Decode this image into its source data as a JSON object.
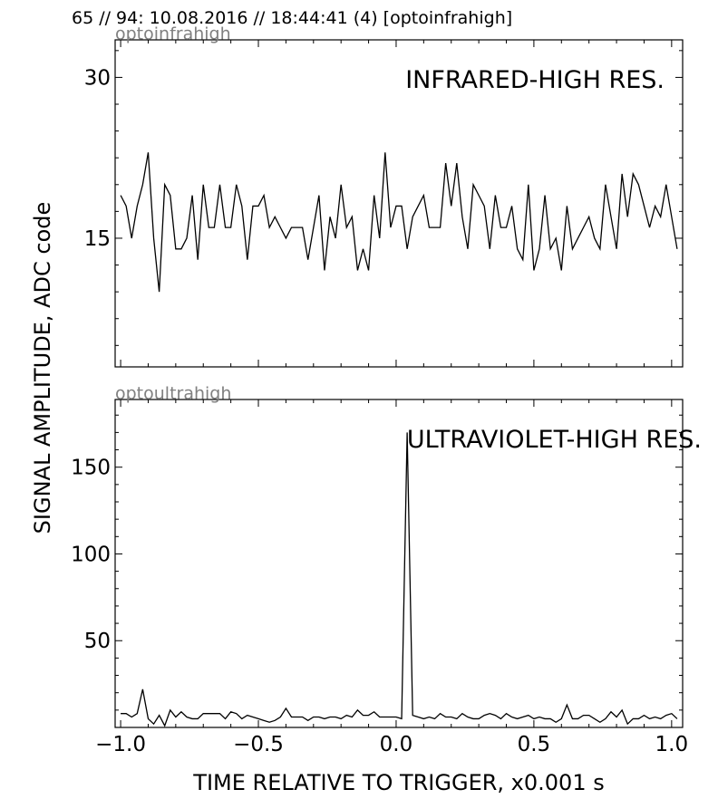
{
  "header": "65 // 94:   10.08.2016 // 18:44:41 (4)  [optoinfrahigh]",
  "ylabel": "SIGNAL AMPLITUDE,  ADC code",
  "xlabel": "TIME RELATIVE TO TRIGGER,   x0.001 s",
  "chart_data": [
    {
      "type": "line",
      "channel": "optoinfrahigh",
      "title": "INFRARED-HIGH RES.",
      "xlim": [
        -1.02,
        1.04
      ],
      "ylim": [
        3,
        33.5
      ],
      "xticks": [
        -1.0,
        -0.5,
        0.0,
        0.5,
        1.0
      ],
      "xtick_labels": [
        "−1.0",
        "−0.5",
        "0.0",
        "0.5",
        "1.0"
      ],
      "yticks": [
        15,
        30
      ],
      "ytick_labels": [
        "15",
        "30"
      ],
      "x_start": -1.0,
      "x_step": 0.02,
      "values": [
        19,
        18,
        15,
        18,
        20,
        23,
        15,
        10,
        20,
        19,
        14,
        14,
        15,
        19,
        13,
        20,
        16,
        16,
        20,
        16,
        16,
        20,
        18,
        13,
        18,
        18,
        19,
        16,
        17,
        16,
        15,
        16,
        16,
        16,
        13,
        16,
        19,
        12,
        17,
        15,
        20,
        16,
        17,
        12,
        14,
        12,
        19,
        15,
        23,
        16,
        18,
        18,
        14,
        17,
        18,
        19,
        16,
        16,
        16,
        22,
        18,
        22,
        17,
        14,
        20,
        19,
        18,
        14,
        19,
        16,
        16,
        18,
        14,
        13,
        20,
        12,
        14,
        19,
        14,
        15,
        12,
        18,
        14,
        15,
        16,
        17,
        15,
        14,
        20,
        17,
        14,
        21,
        17,
        21,
        20,
        18,
        16,
        18,
        17,
        20,
        17,
        14
      ]
    },
    {
      "type": "line",
      "channel": "optoultrahigh",
      "title": "ULTRAVIOLET-HIGH RES.",
      "xlim": [
        -1.02,
        1.04
      ],
      "ylim": [
        0,
        189
      ],
      "xticks": [
        -1.0,
        -0.5,
        0.0,
        0.5,
        1.0
      ],
      "xtick_labels": [
        "−1.0",
        "−0.5",
        "0.0",
        "0.5",
        "1.0"
      ],
      "yticks": [
        50,
        100,
        150
      ],
      "ytick_labels": [
        "50",
        "100",
        "150"
      ],
      "x_start": -1.0,
      "x_step": 0.02,
      "values": [
        8,
        8,
        6,
        8,
        22,
        5,
        2,
        7,
        1,
        10,
        6,
        9,
        6,
        5,
        5,
        8,
        8,
        8,
        8,
        5,
        9,
        8,
        5,
        7,
        6,
        5,
        4,
        3,
        4,
        6,
        11,
        6,
        6,
        6,
        4,
        6,
        6,
        5,
        6,
        6,
        5,
        7,
        6,
        10,
        7,
        7,
        9,
        6,
        6,
        6,
        6,
        5,
        170,
        7,
        6,
        5,
        6,
        5,
        8,
        6,
        6,
        5,
        8,
        6,
        5,
        5,
        7,
        8,
        7,
        5,
        8,
        6,
        5,
        6,
        7,
        5,
        6,
        5,
        5,
        3,
        5,
        13,
        5,
        5,
        7,
        7,
        5,
        3,
        5,
        9,
        6,
        10,
        2,
        5,
        5,
        7,
        5,
        6,
        5,
        7,
        8,
        5
      ]
    }
  ]
}
